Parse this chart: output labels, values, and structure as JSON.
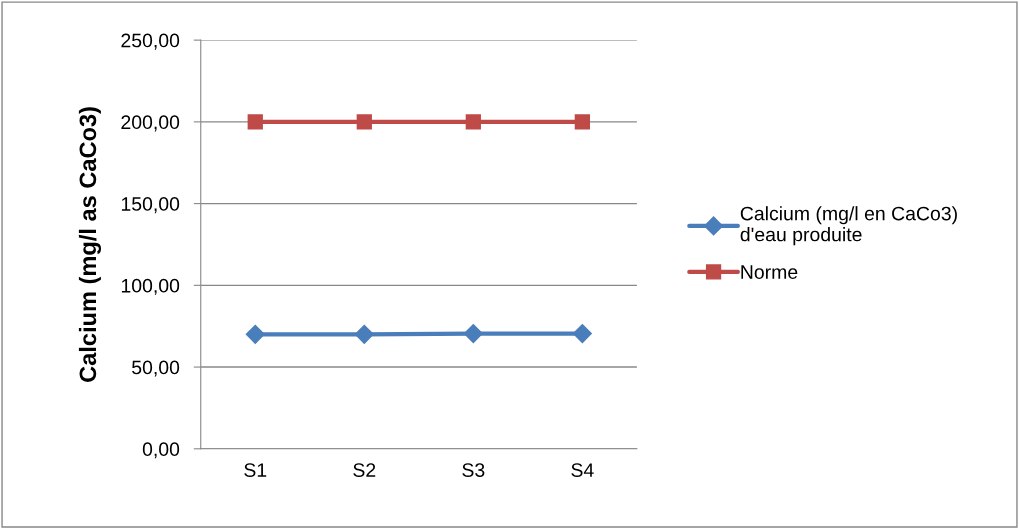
{
  "chart_data": {
    "type": "line",
    "ylabel": "Calcium (mg/l as CaCo3)",
    "categories": [
      "S1",
      "S2",
      "S3",
      "S4"
    ],
    "series": [
      {
        "name": "Calcium (mg/l en CaCo3)\nd'eau produite",
        "color": "#4a7ebb",
        "marker": "diamond",
        "values": [
          70,
          70,
          70.5,
          70.5
        ]
      },
      {
        "name": "Norme",
        "color": "#be4b48",
        "marker": "square",
        "values": [
          200,
          200,
          200,
          200
        ]
      }
    ],
    "ylim": [
      0,
      250
    ],
    "yticks": [
      {
        "value": 0,
        "label": "0,00"
      },
      {
        "value": 50,
        "label": "50,00"
      },
      {
        "value": 100,
        "label": "100,00"
      },
      {
        "value": 150,
        "label": "150,00"
      },
      {
        "value": 200,
        "label": "200,00"
      },
      {
        "value": 250,
        "label": "250,00"
      }
    ],
    "grid": "y",
    "legend": "right"
  }
}
